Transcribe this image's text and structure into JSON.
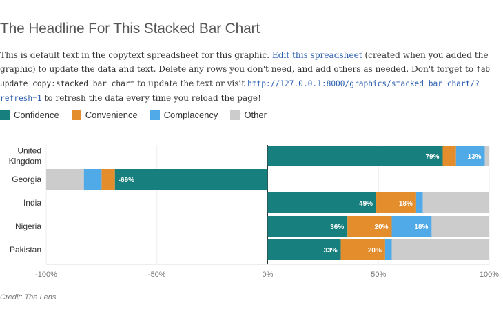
{
  "headline": "The Headline For This Stacked Bar Chart",
  "copy": {
    "part1": "This is default text in the copytext spreadsheet for this graphic. ",
    "link_text": "Edit this spreadsheet",
    "part2": " (created when you added the graphic) to update the data and text. Delete any rows you don't need, and add others as needed. Don't forget to ",
    "command": "fab update_copy:stacked_bar_chart",
    "part3": " to update the text or visit ",
    "url": "http://127.0.0.1:8000/graphics/stacked_bar_chart/?refresh=1",
    "part4": " to refresh the data every time you reload the page!"
  },
  "colors": {
    "Confidence": "#17807e",
    "Convenience": "#e38d2c",
    "Complacency": "#51aae8",
    "Other": "#cccccc"
  },
  "credit": "Credit: The Lens",
  "chart_data": {
    "type": "bar",
    "orientation": "horizontal",
    "stacked": true,
    "categories": [
      "United Kingdom",
      "Georgia",
      "India",
      "Nigeria",
      "Pakistan"
    ],
    "category_lines": [
      [
        "United",
        "Kingdom"
      ],
      [
        "Georgia"
      ],
      [
        "India"
      ],
      [
        "Nigeria"
      ],
      [
        "Pakistan"
      ]
    ],
    "series": [
      {
        "name": "Confidence",
        "values": [
          79,
          -69,
          49,
          36,
          33
        ],
        "labels": [
          "79%",
          "-69%",
          "49%",
          "36%",
          "33%"
        ]
      },
      {
        "name": "Convenience",
        "values": [
          6,
          -6,
          18,
          20,
          20
        ],
        "labels": [
          "",
          "",
          "18%",
          "20%",
          "20%"
        ]
      },
      {
        "name": "Complacency",
        "values": [
          13,
          -8,
          3,
          18,
          3
        ],
        "labels": [
          "13%",
          "",
          "",
          "18%",
          ""
        ]
      },
      {
        "name": "Other",
        "values": [
          2,
          -17,
          30,
          26,
          44
        ],
        "labels": [
          "",
          "",
          "",
          "",
          ""
        ]
      }
    ],
    "xlim": [
      -100,
      100
    ],
    "xticks": [
      -100,
      -50,
      0,
      50,
      100
    ],
    "xtick_labels": [
      "-100%",
      "-50%",
      "0%",
      "50%",
      "100%"
    ],
    "grid": true,
    "legend_position": "top-left"
  }
}
